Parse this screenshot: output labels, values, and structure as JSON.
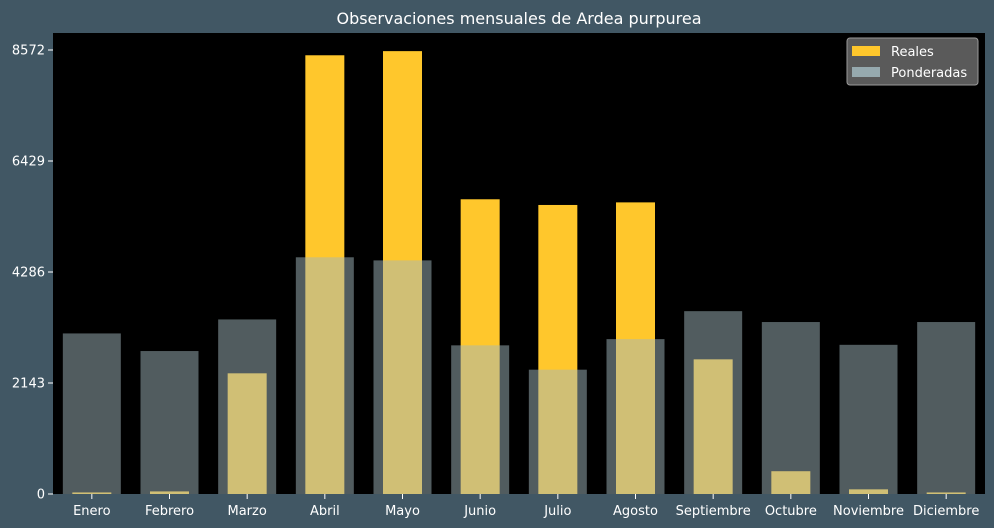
{
  "chart_data": {
    "type": "bar",
    "title": "Observaciones mensuales de Ardea purpurea",
    "xlabel": "",
    "ylabel": "",
    "categories": [
      "Enero",
      "Febrero",
      "Marzo",
      "Abril",
      "Mayo",
      "Junio",
      "Julio",
      "Agosto",
      "Septiembre",
      "Octubre",
      "Noviembre",
      "Diciembre"
    ],
    "series": [
      {
        "name": "Reales",
        "color": "#ffc72c",
        "values": [
          30,
          50,
          2330,
          8470,
          8550,
          5690,
          5580,
          5630,
          2600,
          440,
          90,
          30
        ]
      },
      {
        "name": "Ponderadas",
        "color": "#a1b7bd",
        "values": [
          3100,
          2760,
          3370,
          4570,
          4510,
          2870,
          2400,
          2990,
          3530,
          3320,
          2880,
          3320
        ]
      }
    ],
    "yticks": [
      0,
      2143,
      4286,
      6429,
      8572
    ],
    "ylim": [
      0,
      8900
    ],
    "legend": "top-right",
    "grid": false
  }
}
